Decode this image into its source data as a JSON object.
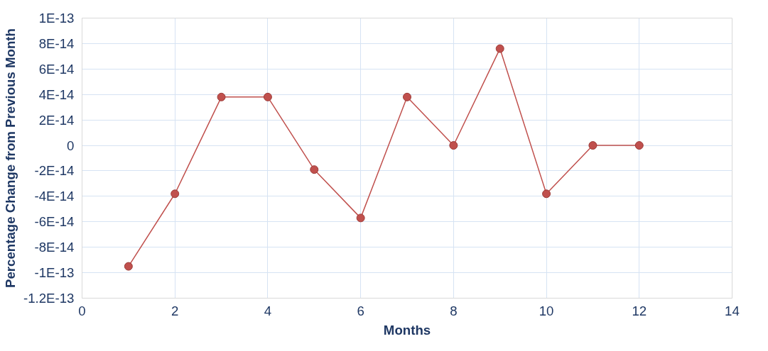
{
  "chart_data": {
    "type": "line",
    "xlabel": "Months",
    "ylabel": "Percentage Change from Previous Month",
    "x": [
      1,
      2,
      3,
      4,
      5,
      6,
      7,
      8,
      9,
      10,
      11,
      12
    ],
    "series": [
      {
        "color": "#c0504d",
        "values": [
          -9.5e-14,
          -3.8e-14,
          3.8e-14,
          3.8e-14,
          -1.9e-14,
          -5.7e-14,
          3.8e-14,
          0,
          7.6e-14,
          -3.8e-14,
          0,
          0
        ]
      }
    ],
    "xlim": [
      0,
      14
    ],
    "xticks": [
      0,
      2,
      4,
      6,
      8,
      10,
      12,
      14
    ],
    "ylim": [
      -1.2e-13,
      1e-13
    ],
    "yticks": [
      {
        "value": -1.2e-13,
        "label": "-1.2E-13"
      },
      {
        "value": -1e-13,
        "label": "-1E-13"
      },
      {
        "value": -8e-14,
        "label": "-8E-14"
      },
      {
        "value": -6e-14,
        "label": "-6E-14"
      },
      {
        "value": -4e-14,
        "label": "-4E-14"
      },
      {
        "value": -2e-14,
        "label": "-2E-14"
      },
      {
        "value": 0,
        "label": "0"
      },
      {
        "value": 2e-14,
        "label": "2E-14"
      },
      {
        "value": 4e-14,
        "label": "4E-14"
      },
      {
        "value": 6e-14,
        "label": "6E-14"
      },
      {
        "value": 8e-14,
        "label": "8E-14"
      },
      {
        "value": 1e-13,
        "label": "1E-13"
      }
    ],
    "grid": true,
    "marker": "circle",
    "line_style": "solid"
  }
}
